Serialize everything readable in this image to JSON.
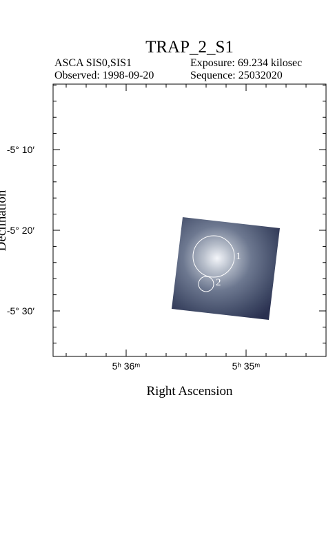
{
  "header": {
    "title": "TRAP_2_S1",
    "instrument": "ASCA SIS0,SIS1",
    "exposure": "Exposure: 69.234 kilosec",
    "observed": "Observed: 1998-09-20",
    "sequence": "Sequence: 25032020"
  },
  "axes": {
    "x_label": "Right Ascension",
    "y_label": "Declination",
    "x_ticks": [
      "5ʰ 36ᵐ",
      "5ʰ 35ᵐ"
    ],
    "y_ticks": [
      "-5° 10′",
      "-5° 20′",
      "-5° 30′"
    ]
  },
  "sources": [
    {
      "label": "1"
    },
    {
      "label": "2"
    }
  ]
}
